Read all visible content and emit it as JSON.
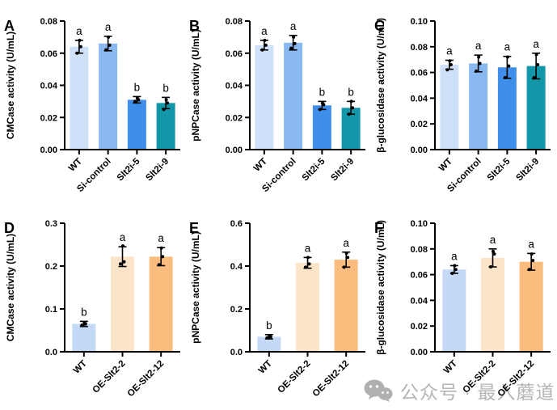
{
  "figure": {
    "background": "#ffffff",
    "axis_color": "#000000",
    "error_bar_color": "#000000",
    "dot_color": "#000000"
  },
  "watermark": {
    "icon": "wechat-icon",
    "icon_color": "#b0b0b0",
    "text": "公众号 · 最入蘑道",
    "text_color": "#b5b5b5"
  },
  "chart_data": [
    {
      "type": "bar",
      "letter": "A",
      "ylabel": "CMCase activity (U/mL)",
      "ylim": [
        0,
        0.08
      ],
      "ymax": 0.08,
      "ystep": 0.02,
      "tick_decimals": 2,
      "grid": false,
      "legend": "none",
      "categories": [
        "WT",
        "Si-control",
        "Slt2i-5",
        "Slt2i-9"
      ],
      "values": [
        0.064,
        0.066,
        0.031,
        0.029
      ],
      "errors": [
        0.004,
        0.0045,
        0.002,
        0.0035
      ],
      "sig_letters": [
        "a",
        "a",
        "b",
        "b"
      ],
      "colors": [
        "#cfe1f8",
        "#8ab9f1",
        "#3f8ee9",
        "#1197a8"
      ],
      "dots": [
        [
          0.06,
          0.064,
          0.068
        ],
        [
          0.062,
          0.065,
          0.07
        ],
        [
          0.03,
          0.031,
          0.032
        ],
        [
          0.025,
          0.029,
          0.031
        ]
      ]
    },
    {
      "type": "bar",
      "letter": "B",
      "ylabel": "pNPCase activity (U/mL)",
      "ylim": [
        0,
        0.08
      ],
      "ymax": 0.08,
      "ystep": 0.02,
      "tick_decimals": 2,
      "grid": false,
      "legend": "none",
      "categories": [
        "WT",
        "Si-control",
        "Slt2i-5",
        "Slt2i-9"
      ],
      "values": [
        0.065,
        0.0665,
        0.0275,
        0.026
      ],
      "errors": [
        0.003,
        0.0045,
        0.0025,
        0.004
      ],
      "sig_letters": [
        "a",
        "a",
        "b",
        "b"
      ],
      "colors": [
        "#cfe1f8",
        "#8ab9f1",
        "#3f8ee9",
        "#1197a8"
      ],
      "dots": [
        [
          0.062,
          0.065,
          0.068
        ],
        [
          0.063,
          0.066,
          0.07
        ],
        [
          0.025,
          0.028,
          0.029
        ],
        [
          0.022,
          0.026,
          0.03
        ]
      ]
    },
    {
      "type": "bar",
      "letter": "C",
      "ylabel": "β-glucosidase activity (U/mL)",
      "ylim": [
        0,
        0.1
      ],
      "ymax": 0.1,
      "ystep": 0.02,
      "tick_decimals": 2,
      "grid": false,
      "legend": "none",
      "categories": [
        "WT",
        "Si-control",
        "Slt2i-5",
        "Slt2i-9"
      ],
      "values": [
        0.066,
        0.067,
        0.064,
        0.065
      ],
      "errors": [
        0.0035,
        0.0065,
        0.0085,
        0.01
      ],
      "sig_letters": [
        "a",
        "a",
        "a",
        "a"
      ],
      "colors": [
        "#cfe1f8",
        "#8ab9f1",
        "#3f8ee9",
        "#1197a8"
      ],
      "dots": [
        [
          0.062,
          0.066,
          0.069
        ],
        [
          0.061,
          0.067,
          0.072
        ],
        [
          0.056,
          0.065,
          0.072
        ],
        [
          0.056,
          0.066,
          0.074
        ]
      ]
    },
    {
      "type": "bar",
      "letter": "D",
      "ylabel": "CMCase activity (U/mL)",
      "ylim": [
        0,
        0.3
      ],
      "ymax": 0.3,
      "ystep": 0.1,
      "tick_decimals": 1,
      "grid": false,
      "legend": "none",
      "categories": [
        "WT",
        "OE-Slt2-2",
        "OE-Slt2-12"
      ],
      "values": [
        0.065,
        0.222,
        0.222
      ],
      "errors": [
        0.006,
        0.023,
        0.021
      ],
      "sig_letters": [
        "b",
        "a",
        "a"
      ],
      "colors": [
        "#c3d9f6",
        "#fce4c8",
        "#fabd7d"
      ],
      "dots": [
        [
          0.062,
          0.065,
          0.068
        ],
        [
          0.205,
          0.21,
          0.247
        ],
        [
          0.203,
          0.222,
          0.242
        ]
      ]
    },
    {
      "type": "bar",
      "letter": "E",
      "ylabel": "pNPCase activity (U/mL)",
      "ylim": [
        0,
        0.6
      ],
      "ymax": 0.6,
      "ystep": 0.2,
      "tick_decimals": 1,
      "grid": false,
      "legend": "none",
      "categories": [
        "WT",
        "OE-Slt2-2",
        "OE-Slt2-12"
      ],
      "values": [
        0.07,
        0.415,
        0.43
      ],
      "errors": [
        0.01,
        0.025,
        0.035
      ],
      "sig_letters": [
        "b",
        "a",
        "a"
      ],
      "colors": [
        "#c3d9f6",
        "#fce4c8",
        "#fabd7d"
      ],
      "dots": [
        [
          0.065,
          0.07,
          0.075
        ],
        [
          0.395,
          0.41,
          0.44
        ],
        [
          0.395,
          0.44,
          0.46
        ]
      ]
    },
    {
      "type": "bar",
      "letter": "F",
      "ylabel": "β-glucosidase activity (U/mL)",
      "ylim": [
        0,
        0.1
      ],
      "ymax": 0.1,
      "ystep": 0.02,
      "tick_decimals": 2,
      "grid": false,
      "legend": "none",
      "categories": [
        "WT",
        "OE-Slt2-2",
        "OE-Slt2-12"
      ],
      "values": [
        0.064,
        0.073,
        0.07
      ],
      "errors": [
        0.003,
        0.007,
        0.0065
      ],
      "sig_letters": [
        "a",
        "a",
        "a"
      ],
      "colors": [
        "#c3d9f6",
        "#fce4c8",
        "#fabd7d"
      ],
      "dots": [
        [
          0.061,
          0.064,
          0.067
        ],
        [
          0.066,
          0.076,
          0.078
        ],
        [
          0.064,
          0.071,
          0.076
        ]
      ]
    }
  ]
}
